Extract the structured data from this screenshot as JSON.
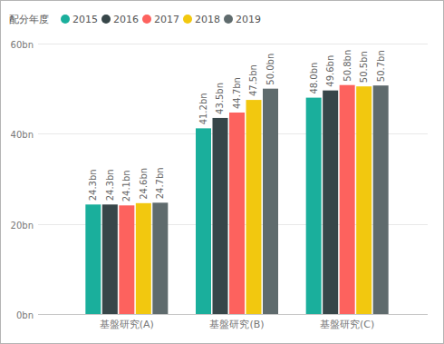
{
  "chart_data": {
    "type": "bar",
    "legend_title": "配分年度",
    "categories": [
      "基盤研究(A)",
      "基盤研究(B)",
      "基盤研究(C)"
    ],
    "series": [
      {
        "name": "2015",
        "color": "#1aaf9c",
        "values": [
          24.3,
          41.2,
          48.0
        ],
        "value_labels": [
          "24.3bn",
          "41.2bn",
          "48.0bn"
        ]
      },
      {
        "name": "2016",
        "color": "#374649",
        "values": [
          24.3,
          43.5,
          49.6
        ],
        "value_labels": [
          "24.3bn",
          "43.5bn",
          "49.6bn"
        ]
      },
      {
        "name": "2017",
        "color": "#fd625e",
        "values": [
          24.1,
          44.7,
          50.8
        ],
        "value_labels": [
          "24.1bn",
          "44.7bn",
          "50.8bn"
        ]
      },
      {
        "name": "2018",
        "color": "#f2c80f",
        "values": [
          24.6,
          47.5,
          50.5
        ],
        "value_labels": [
          "24.6bn",
          "47.5bn",
          "50.5bn"
        ]
      },
      {
        "name": "2019",
        "color": "#5f6b6d",
        "values": [
          24.7,
          50.0,
          50.7
        ],
        "value_labels": [
          "24.7bn",
          "50.0bn",
          "50.7bn"
        ]
      }
    ],
    "ylim": [
      0,
      60
    ],
    "yticks": [
      {
        "value": 0,
        "label": "0bn"
      },
      {
        "value": 20,
        "label": "20bn"
      },
      {
        "value": 40,
        "label": "40bn"
      },
      {
        "value": 60,
        "label": "60bn"
      }
    ],
    "grid": true,
    "legend": "top-left",
    "data_labels": true
  }
}
